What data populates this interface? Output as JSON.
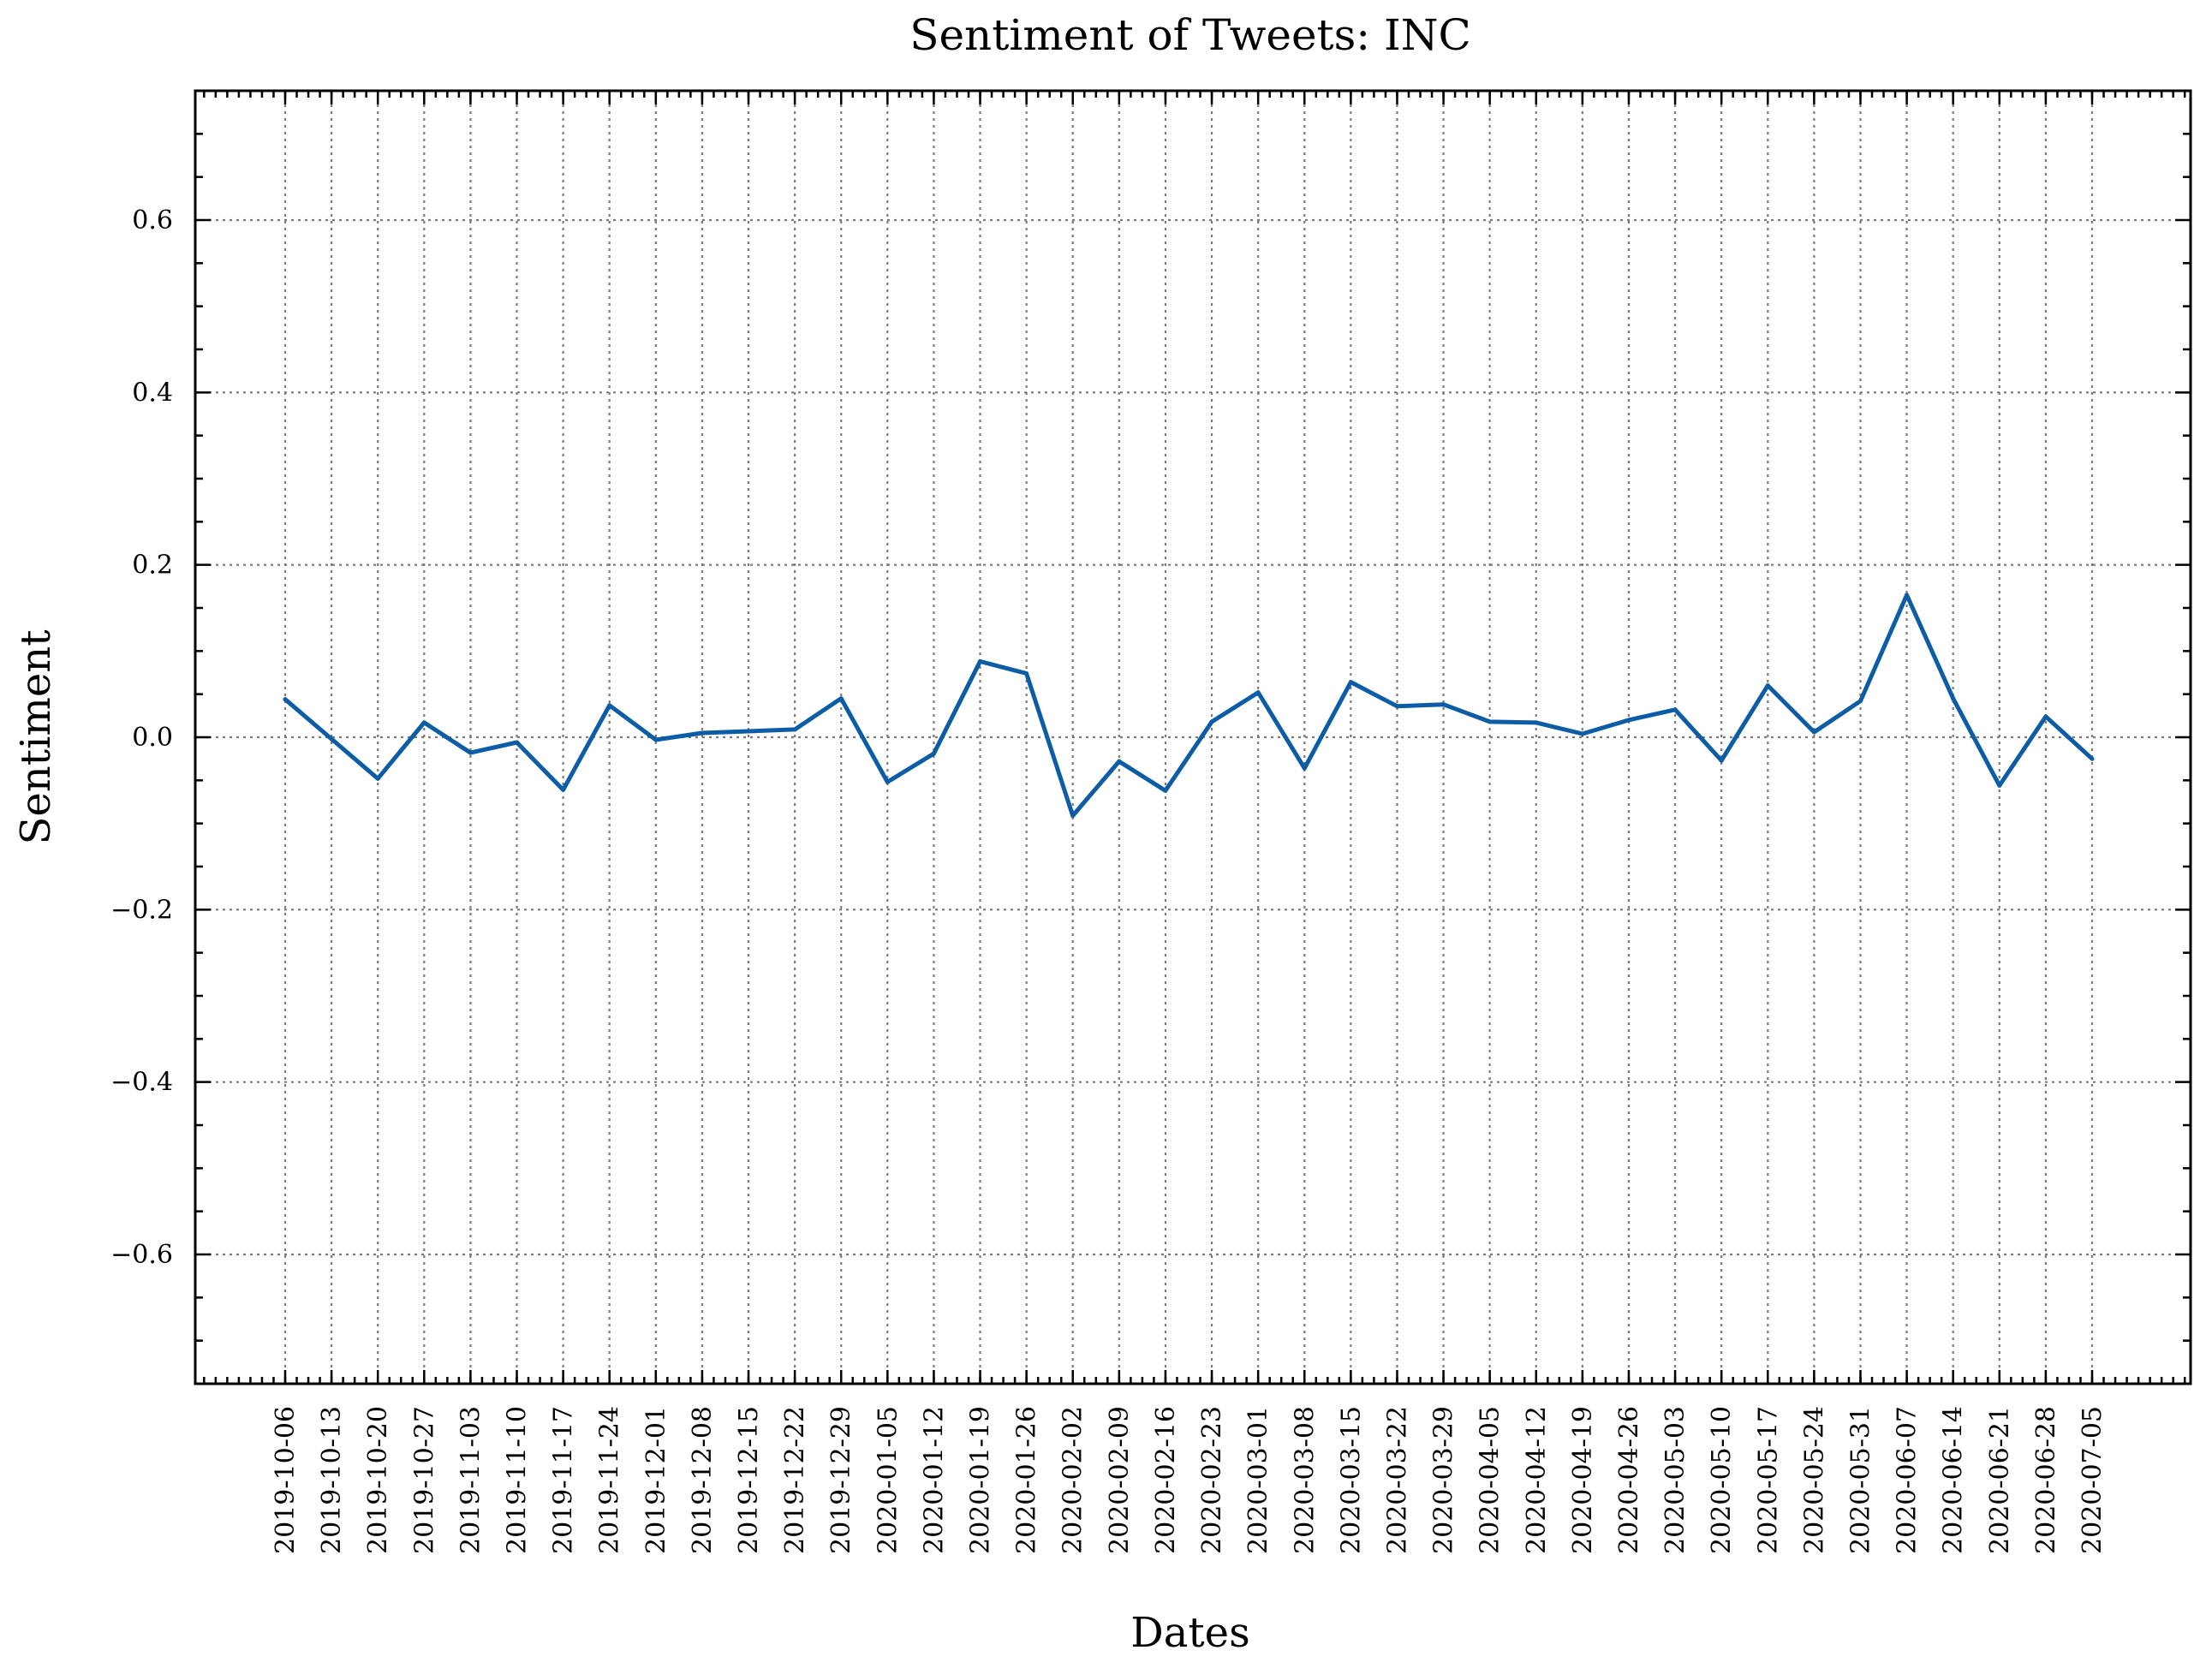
{
  "chart_data": {
    "type": "line",
    "title": "Sentiment of Tweets: INC",
    "xlabel": "Dates",
    "ylabel": "Sentiment",
    "ylim": [
      -0.75,
      0.75
    ],
    "yticks": [
      -0.6,
      -0.4,
      -0.2,
      0.0,
      0.2,
      0.4,
      0.6
    ],
    "ytick_labels": [
      "−0.6",
      "−0.4",
      "−0.2",
      "0.0",
      "0.2",
      "0.4",
      "0.6"
    ],
    "grid": true,
    "line_color": "#0C5DA5",
    "x": [
      "2019-10-06",
      "2019-10-13",
      "2019-10-20",
      "2019-10-27",
      "2019-11-03",
      "2019-11-10",
      "2019-11-17",
      "2019-11-24",
      "2019-12-01",
      "2019-12-08",
      "2019-12-15",
      "2019-12-22",
      "2019-12-29",
      "2020-01-05",
      "2020-01-12",
      "2020-01-19",
      "2020-01-26",
      "2020-02-02",
      "2020-02-09",
      "2020-02-16",
      "2020-02-23",
      "2020-03-01",
      "2020-03-08",
      "2020-03-15",
      "2020-03-22",
      "2020-03-29",
      "2020-04-05",
      "2020-04-12",
      "2020-04-19",
      "2020-04-26",
      "2020-05-03",
      "2020-05-10",
      "2020-05-17",
      "2020-05-24",
      "2020-05-31",
      "2020-06-07",
      "2020-06-14",
      "2020-06-21",
      "2020-06-28",
      "2020-07-05"
    ],
    "series": [
      {
        "values": [
          0.044,
          -0.002,
          -0.048,
          0.017,
          -0.018,
          -0.006,
          -0.061,
          0.037,
          -0.003,
          0.005,
          0.007,
          0.009,
          0.045,
          -0.052,
          -0.019,
          0.088,
          0.074,
          -0.091,
          -0.028,
          -0.062,
          0.018,
          0.052,
          -0.036,
          0.064,
          0.036,
          0.038,
          0.018,
          0.017,
          0.004,
          0.02,
          0.032,
          -0.027,
          0.06,
          0.006,
          0.042,
          0.165,
          0.045,
          -0.056,
          0.024,
          -0.025
        ]
      }
    ]
  }
}
